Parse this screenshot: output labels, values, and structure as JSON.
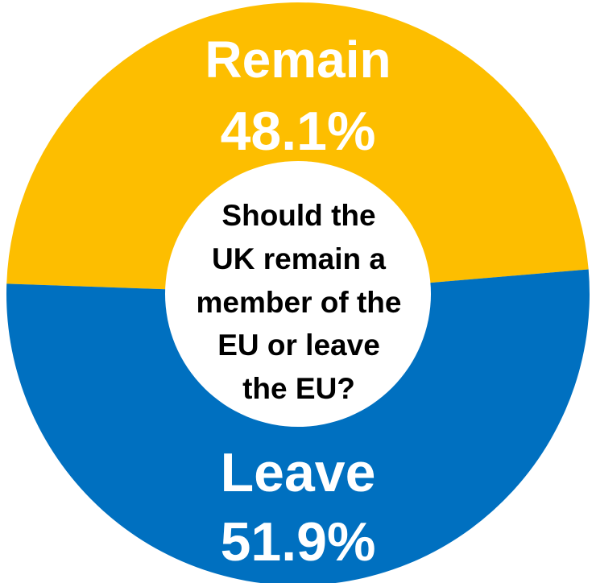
{
  "chart_data": {
    "type": "pie",
    "style": "donut",
    "center_text": [
      "Should the",
      "UK remain a",
      "member of the",
      "EU or leave",
      "the EU?"
    ],
    "slices": [
      {
        "label": "Remain",
        "value": 48.1,
        "value_label": "48.1%",
        "color": "#FDBE00"
      },
      {
        "label": "Leave",
        "value": 51.9,
        "value_label": "51.9%",
        "color": "#0070C0"
      }
    ]
  }
}
